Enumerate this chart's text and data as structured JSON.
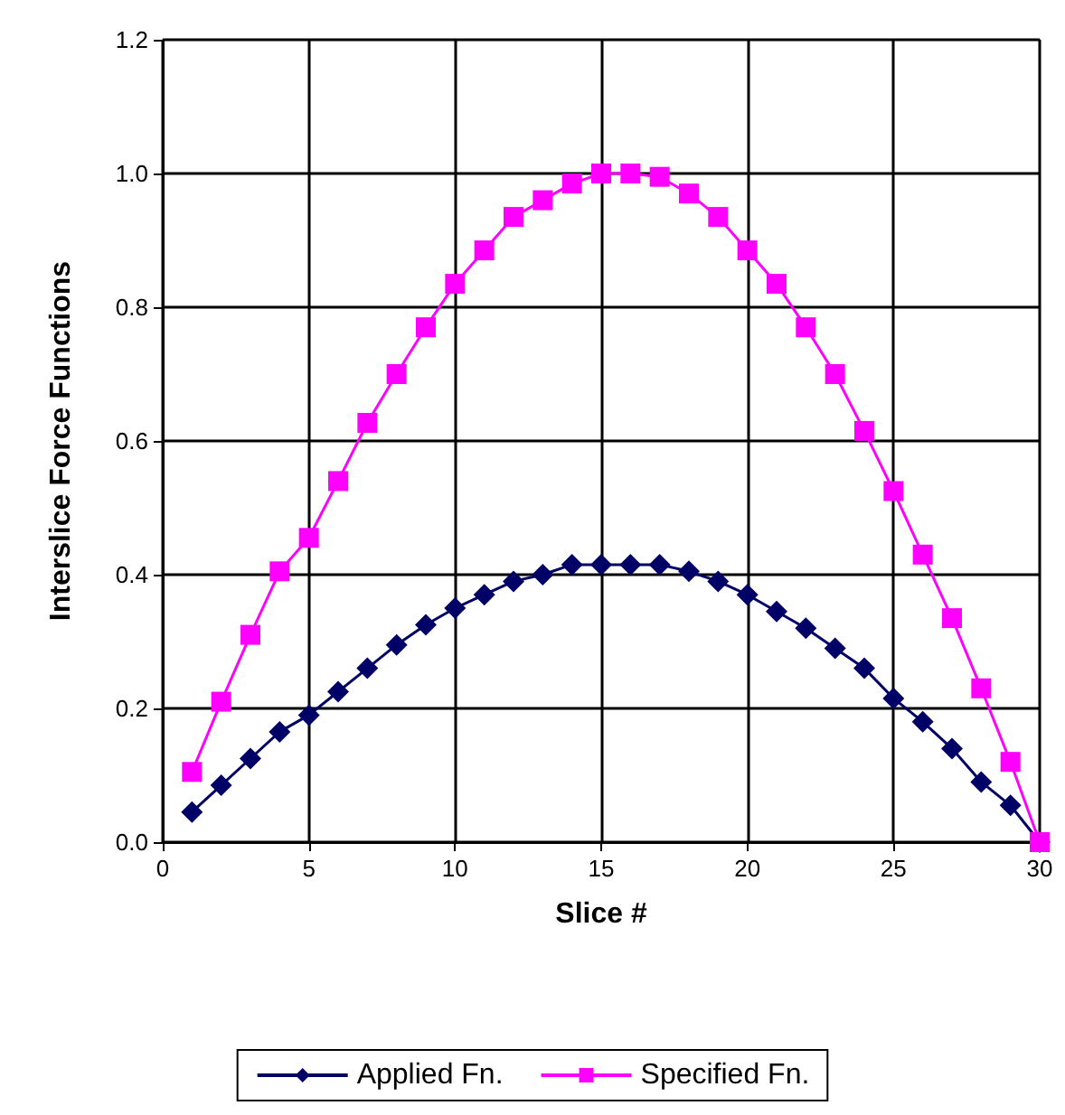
{
  "chart_data": {
    "type": "line",
    "xlabel": "Slice #",
    "ylabel": "Interslice Force Functions",
    "x": [
      1,
      2,
      3,
      4,
      5,
      6,
      7,
      8,
      9,
      10,
      11,
      12,
      13,
      14,
      15,
      16,
      17,
      18,
      19,
      20,
      21,
      22,
      23,
      24,
      25,
      26,
      27,
      28,
      29,
      30
    ],
    "series": [
      {
        "name": "Applied Fn.",
        "color": "#000066",
        "marker": "diamond",
        "values": [
          0.045,
          0.085,
          0.125,
          0.165,
          0.19,
          0.225,
          0.26,
          0.295,
          0.325,
          0.35,
          0.37,
          0.39,
          0.4,
          0.415,
          0.415,
          0.415,
          0.415,
          0.405,
          0.39,
          0.37,
          0.345,
          0.32,
          0.29,
          0.26,
          0.215,
          0.18,
          0.14,
          0.09,
          0.055,
          0
        ]
      },
      {
        "name": "Specified Fn.",
        "color": "#ff00ff",
        "marker": "square",
        "values": [
          0.105,
          0.21,
          0.31,
          0.405,
          0.455,
          0.54,
          0.627,
          0.7,
          0.77,
          0.835,
          0.885,
          0.935,
          0.96,
          0.985,
          1.0,
          1.0,
          0.995,
          0.97,
          0.935,
          0.885,
          0.835,
          0.77,
          0.7,
          0.615,
          0.525,
          0.43,
          0.335,
          0.23,
          0.12,
          0
        ]
      }
    ],
    "xlim": [
      0,
      30
    ],
    "xticks": [
      0,
      5,
      10,
      15,
      20,
      25,
      30
    ],
    "ylim": [
      0,
      1.2
    ],
    "yticks": [
      {
        "value": 0,
        "label": "0.0"
      },
      {
        "value": 0.2,
        "label": "0.2"
      },
      {
        "value": 0.4,
        "label": "0.4"
      },
      {
        "value": 0.6,
        "label": "0.6"
      },
      {
        "value": 0.8,
        "label": "0.8"
      },
      {
        "value": 1,
        "label": "1.0"
      },
      {
        "value": 1.2,
        "label": "1.2"
      }
    ],
    "grid": true,
    "legend": "bottom",
    "line_style": "solid"
  }
}
